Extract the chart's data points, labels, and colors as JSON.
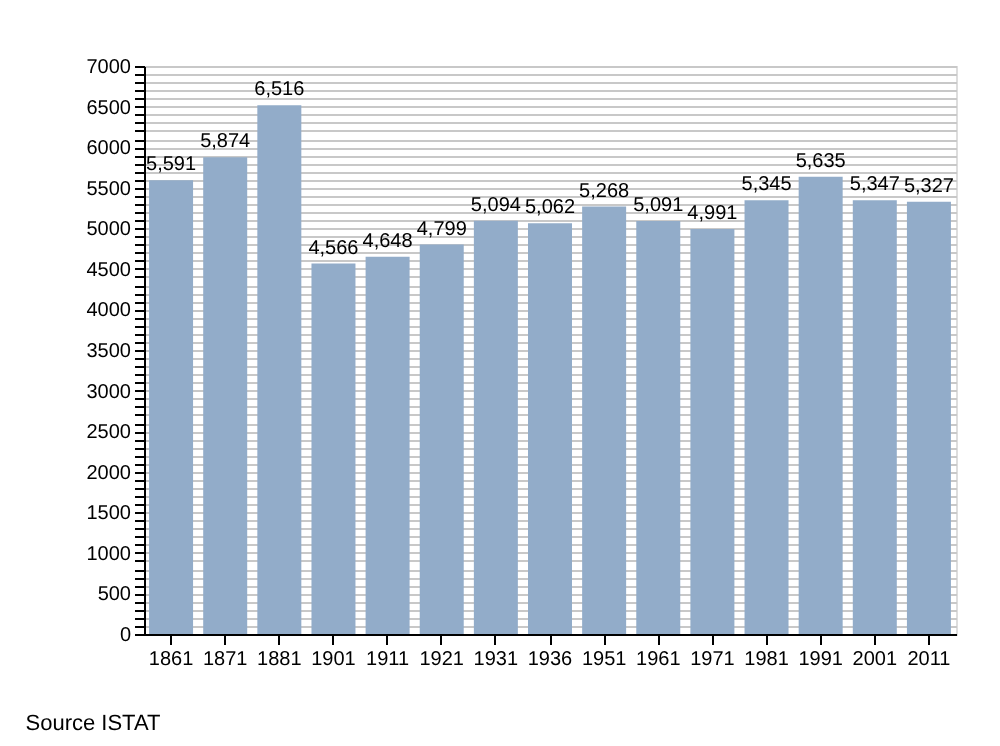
{
  "chart_data": {
    "type": "bar",
    "categories": [
      "1861",
      "1871",
      "1881",
      "1901",
      "1911",
      "1921",
      "1931",
      "1936",
      "1951",
      "1961",
      "1971",
      "1981",
      "1991",
      "2001",
      "2011"
    ],
    "values": [
      5591,
      5874,
      6516,
      4566,
      4648,
      4799,
      5094,
      5062,
      5268,
      5091,
      4991,
      5345,
      5635,
      5347,
      5327
    ],
    "value_labels": [
      "5,591",
      "5,874",
      "6,516",
      "4,566",
      "4,648",
      "4,799",
      "5,094",
      "5,062",
      "5,268",
      "5,091",
      "4,991",
      "5,345",
      "5,635",
      "5,347",
      "5,327"
    ],
    "color": "#92acc9",
    "data_labels": true,
    "ylim": [
      0,
      7000
    ],
    "yticks": [
      0,
      {
        "value": 100,
        "label": null
      },
      {
        "value": 200,
        "label": null
      },
      {
        "value": 300,
        "label": null
      },
      {
        "value": 400,
        "label": null
      },
      500,
      {
        "value": 600,
        "label": null
      },
      {
        "value": 700,
        "label": null
      },
      {
        "value": 800,
        "label": null
      },
      {
        "value": 900,
        "label": null
      },
      1000,
      {
        "value": 1100,
        "label": null
      },
      {
        "value": 1200,
        "label": null
      },
      {
        "value": 1300,
        "label": null
      },
      {
        "value": 1400,
        "label": null
      },
      1500,
      {
        "value": 1600,
        "label": null
      },
      {
        "value": 1700,
        "label": null
      },
      {
        "value": 1800,
        "label": null
      },
      {
        "value": 1900,
        "label": null
      },
      2000,
      {
        "value": 2100,
        "label": null
      },
      {
        "value": 2200,
        "label": null
      },
      {
        "value": 2300,
        "label": null
      },
      {
        "value": 2400,
        "label": null
      },
      2500,
      {
        "value": 2600,
        "label": null
      },
      {
        "value": 2700,
        "label": null
      },
      {
        "value": 2800,
        "label": null
      },
      {
        "value": 2900,
        "label": null
      },
      3000,
      {
        "value": 3100,
        "label": null
      },
      {
        "value": 3200,
        "label": null
      },
      {
        "value": 3300,
        "label": null
      },
      {
        "value": 3400,
        "label": null
      },
      3500,
      {
        "value": 3600,
        "label": null
      },
      {
        "value": 3700,
        "label": null
      },
      {
        "value": 3800,
        "label": null
      },
      {
        "value": 3900,
        "label": null
      },
      4000,
      {
        "value": 4100,
        "label": null
      },
      {
        "value": 4200,
        "label": null
      },
      {
        "value": 4300,
        "label": null
      },
      {
        "value": 4400,
        "label": null
      },
      4500,
      {
        "value": 4600,
        "label": null
      },
      {
        "value": 4700,
        "label": null
      },
      {
        "value": 4800,
        "label": null
      },
      {
        "value": 4900,
        "label": null
      },
      5000,
      {
        "value": 5100,
        "label": null
      },
      {
        "value": 5200,
        "label": null
      },
      {
        "value": 5300,
        "label": null
      },
      {
        "value": 5400,
        "label": null
      },
      5500,
      {
        "value": 5600,
        "label": null
      },
      {
        "value": 5700,
        "label": null
      },
      {
        "value": 5800,
        "label": null
      },
      {
        "value": 5900,
        "label": null
      },
      6000,
      {
        "value": 6100,
        "label": null
      },
      {
        "value": 6200,
        "label": null
      },
      {
        "value": 6300,
        "label": null
      },
      {
        "value": 6400,
        "label": null
      },
      6500,
      {
        "value": 6600,
        "label": null
      },
      {
        "value": 6700,
        "label": null
      },
      {
        "value": 6800,
        "label": null
      },
      {
        "value": 6900,
        "label": null
      },
      7000
    ],
    "grid": true,
    "annotations": [
      "Source ISTAT"
    ]
  }
}
